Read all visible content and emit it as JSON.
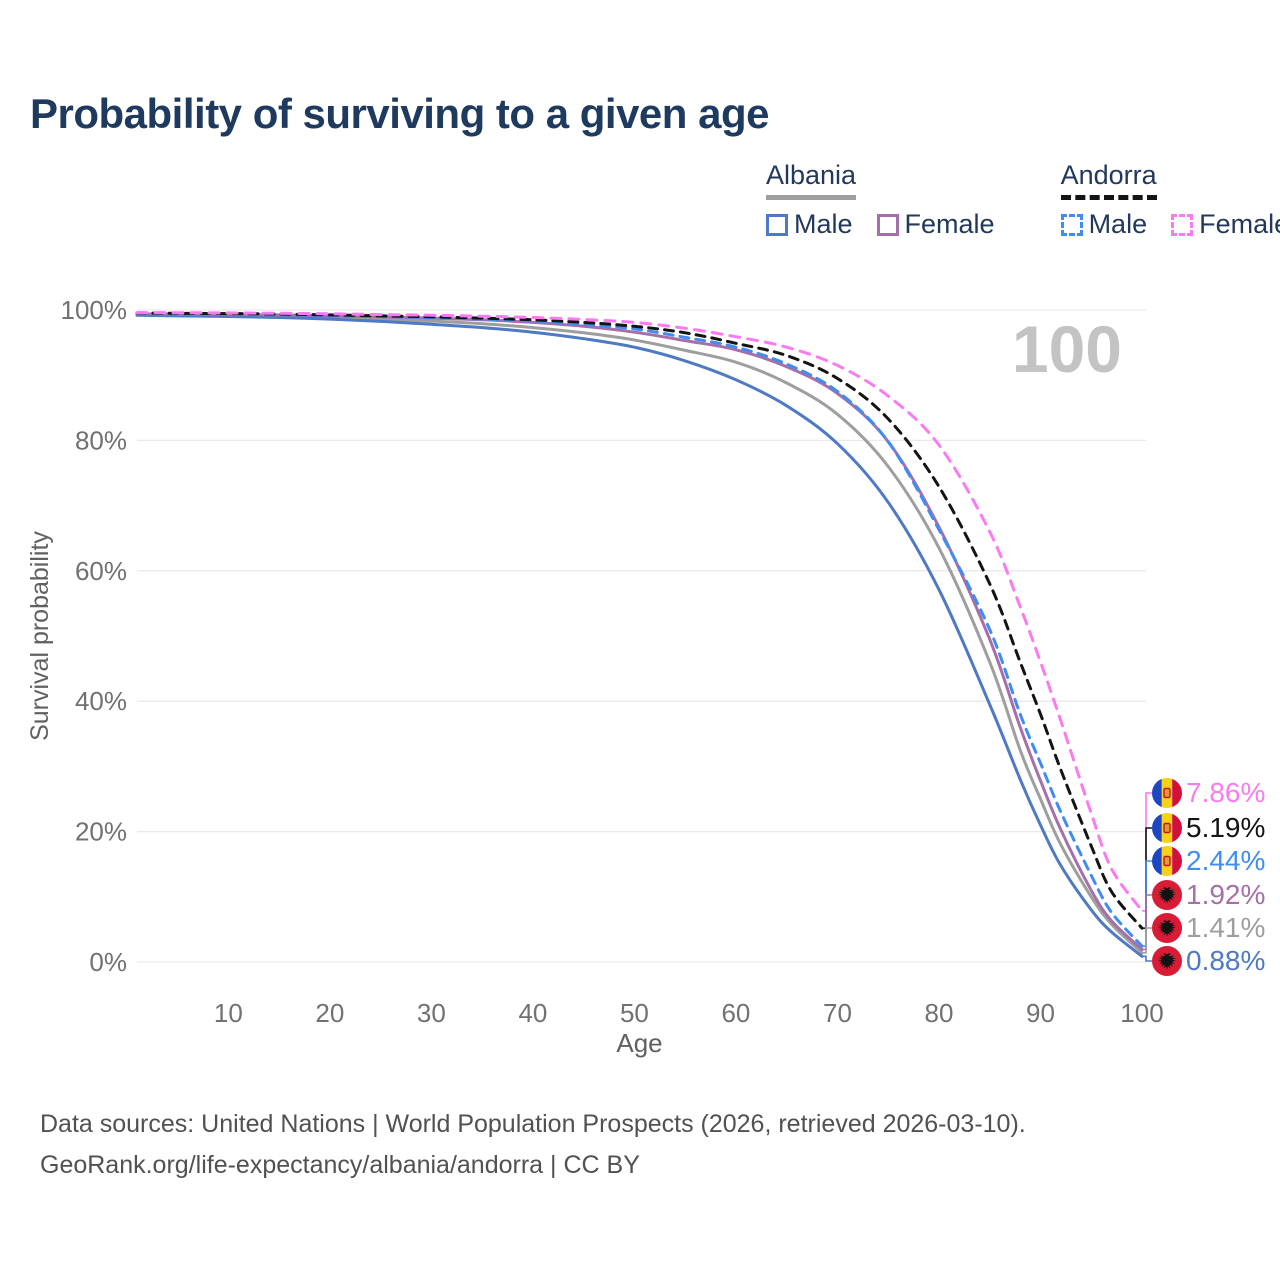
{
  "title": "Probability of surviving to a given age",
  "watermark_age": "100",
  "legend": {
    "groups": [
      {
        "label": "Albania",
        "line_style": "solid",
        "underline_color": "#9e9e9e",
        "items": [
          {
            "label": "Male",
            "color": "#4e79c4"
          },
          {
            "label": "Female",
            "color": "#a66fa9"
          }
        ]
      },
      {
        "label": "Andorra",
        "line_style": "dashed",
        "underline_color": "#141414",
        "items": [
          {
            "label": "Male",
            "color": "#3f8df3"
          },
          {
            "label": "Female",
            "color": "#fb7af2"
          }
        ]
      }
    ]
  },
  "chart_data": {
    "type": "line",
    "title": "Probability of surviving to a given age",
    "xlabel": "Age",
    "ylabel": "Survival probability",
    "xlim": [
      1,
      100
    ],
    "ylim": [
      0,
      100
    ],
    "x_ticks": [
      10,
      20,
      30,
      40,
      50,
      60,
      70,
      80,
      90,
      100
    ],
    "y_ticks": [
      0,
      20,
      40,
      60,
      80,
      100
    ],
    "y_tick_suffix": "%",
    "grid": "horizontal-only",
    "legend_position": "top-right",
    "hover_age_indicator": "100",
    "ages": [
      1,
      5,
      10,
      15,
      20,
      25,
      30,
      35,
      40,
      45,
      50,
      55,
      60,
      65,
      70,
      75,
      80,
      85,
      88,
      90,
      92,
      95,
      97,
      100
    ],
    "series": [
      {
        "name": "Albania",
        "country": "Albania",
        "sex": "Both",
        "style": "solid",
        "color": "#9e9e9e",
        "flag": "albania",
        "end_value": 1.41,
        "end_label": "1.41%",
        "values": [
          99.3,
          99.25,
          99.2,
          99.1,
          98.9,
          98.6,
          98.3,
          97.9,
          97.3,
          96.5,
          95.4,
          93.8,
          92.0,
          88.8,
          84.0,
          76.0,
          63.5,
          46.0,
          32.5,
          25.0,
          18.0,
          10.0,
          5.8,
          1.41
        ]
      },
      {
        "name": "Albania Male",
        "country": "Albania",
        "sex": "Male",
        "style": "solid",
        "color": "#4e79c4",
        "flag": "albania",
        "end_value": 0.88,
        "end_label": "0.88%",
        "values": [
          99.2,
          99.1,
          99.0,
          98.85,
          98.6,
          98.25,
          97.8,
          97.3,
          96.6,
          95.6,
          94.3,
          92.2,
          89.3,
          85.3,
          79.5,
          70.5,
          57.1,
          39.5,
          28.0,
          21.0,
          14.8,
          8.0,
          4.6,
          0.88
        ]
      },
      {
        "name": "Albania Female",
        "country": "Albania",
        "sex": "Female",
        "style": "solid",
        "color": "#a66fa9",
        "flag": "albania",
        "end_value": 1.92,
        "end_label": "1.92%",
        "values": [
          99.4,
          99.35,
          99.3,
          99.25,
          99.1,
          98.95,
          98.75,
          98.5,
          98.1,
          97.5,
          96.6,
          95.3,
          93.9,
          91.3,
          87.2,
          79.8,
          66.7,
          49.5,
          36.0,
          27.8,
          20.3,
          11.0,
          6.3,
          1.92
        ]
      },
      {
        "name": "Andorra Male",
        "country": "Andorra",
        "sex": "Male",
        "style": "dashed",
        "color": "#3f8df3",
        "flag": "andorra",
        "end_value": 2.44,
        "end_label": "2.44%",
        "values": [
          99.5,
          99.45,
          99.4,
          99.3,
          99.15,
          99.0,
          98.85,
          98.6,
          98.3,
          97.8,
          97.1,
          95.8,
          94.3,
          91.7,
          87.5,
          79.8,
          66.3,
          51.0,
          38.0,
          30.5,
          23.0,
          13.3,
          7.6,
          2.44
        ]
      },
      {
        "name": "Andorra",
        "country": "Andorra",
        "sex": "Both",
        "style": "dashed",
        "color": "#141414",
        "flag": "andorra",
        "end_value": 5.19,
        "end_label": "5.19%",
        "values": [
          99.55,
          99.5,
          99.45,
          99.38,
          99.25,
          99.1,
          98.95,
          98.75,
          98.5,
          98.1,
          97.5,
          96.5,
          94.9,
          93.0,
          89.5,
          83.3,
          72.9,
          58.0,
          46.0,
          38.0,
          29.5,
          17.8,
          10.8,
          5.19
        ]
      },
      {
        "name": "Andorra Female",
        "country": "Andorra",
        "sex": "Female",
        "style": "dashed",
        "color": "#fb7af2",
        "flag": "andorra",
        "end_value": 7.86,
        "end_label": "7.86%",
        "values": [
          99.6,
          99.58,
          99.55,
          99.5,
          99.42,
          99.3,
          99.2,
          99.05,
          98.85,
          98.55,
          98.1,
          97.2,
          95.9,
          94.3,
          91.5,
          86.8,
          79.3,
          66.0,
          54.5,
          46.0,
          37.0,
          22.8,
          14.3,
          7.86
        ]
      }
    ],
    "colors": {
      "grid": "#e9e9e9",
      "tick_text": "#717171",
      "axis_label": "#616161",
      "watermark": "#c3c3c3",
      "flag_albania_red": "#da1b35",
      "flag_andorra_blue": "#1d46c0",
      "flag_andorra_yellow": "#f5d216",
      "flag_andorra_red": "#d3103c"
    }
  },
  "footer": {
    "line1": "Data sources: United Nations | World Population Prospects (2026, retrieved 2026-03-10).",
    "line2": "GeoRank.org/life-expectancy/albania/andorra | CC BY"
  }
}
